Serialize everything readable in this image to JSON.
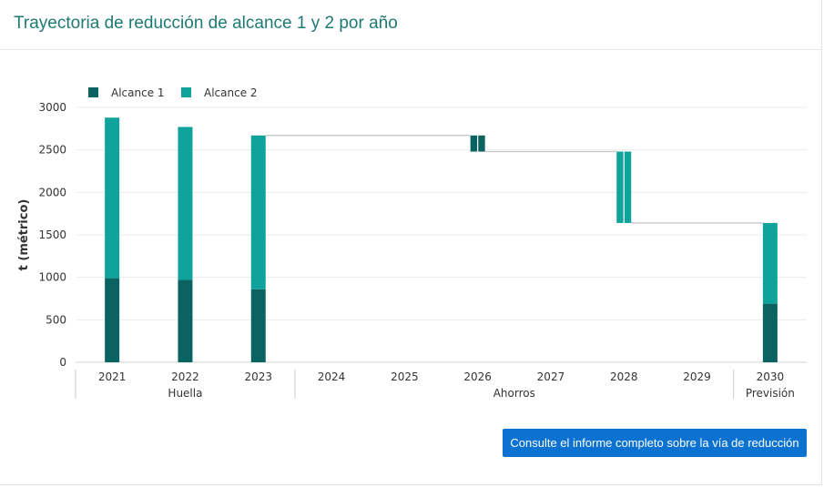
{
  "header": {
    "title": "Trayectoria de reducción de alcance 1 y 2 por año"
  },
  "cta": {
    "label": "Consulte el informe completo sobre la vía de reducción"
  },
  "colors": {
    "alcance1": "#0a6360",
    "alcance2": "#0fa39c",
    "title": "#1d7a73",
    "button": "#0b72d1",
    "connector": "#c4c8cc"
  },
  "chart_data": {
    "type": "bar",
    "subtype": "stacked waterfall",
    "ylabel": "t (métrico)",
    "ylim": [
      0,
      3000
    ],
    "yticks": [
      0,
      500,
      1000,
      1500,
      2000,
      2500,
      3000
    ],
    "grid": true,
    "legend_position": "top-left",
    "categories": [
      "2021",
      "2022",
      "2023",
      "2024",
      "2025",
      "2026",
      "2027",
      "2028",
      "2029",
      "2030"
    ],
    "groups": [
      {
        "label": "Huella",
        "categories": [
          "2021",
          "2022",
          "2023"
        ]
      },
      {
        "label": "Ahorros",
        "categories": [
          "2024",
          "2025",
          "2026",
          "2027",
          "2028",
          "2029"
        ]
      },
      {
        "label": "Previsión",
        "categories": [
          "2030"
        ]
      }
    ],
    "series": [
      {
        "name": "Alcance 1",
        "color": "#0a6360"
      },
      {
        "name": "Alcance 2",
        "color": "#0fa39c"
      }
    ],
    "totals": [
      {
        "x": "2021",
        "alcance1": 990,
        "alcance2": 1890
      },
      {
        "x": "2022",
        "alcance1": 970,
        "alcance2": 1800
      },
      {
        "x": "2023",
        "alcance1": 860,
        "alcance2": 1810
      },
      {
        "x": "2030",
        "alcance1": 690,
        "alcance2": 950
      }
    ],
    "savings": [
      {
        "x": "2026",
        "series": "Alcance 1",
        "from": 2670,
        "to": 2480
      },
      {
        "x": "2028",
        "series": "Alcance 2",
        "from": 2480,
        "to": 1640
      }
    ],
    "connectors": [
      {
        "from": "2023",
        "to": "2026",
        "y": 2670
      },
      {
        "from": "2026",
        "to": "2028",
        "y": 2480
      },
      {
        "from": "2028",
        "to": "2030",
        "y": 1640
      }
    ]
  }
}
